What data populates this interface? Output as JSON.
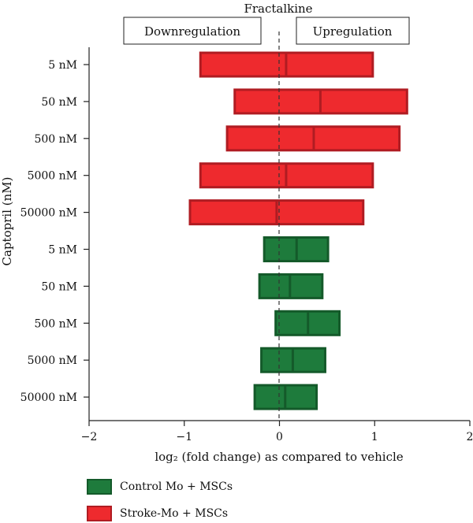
{
  "chart_data": {
    "type": "bar",
    "title": "Fractalkine",
    "xlabel": "log₂ (fold change) as compared to vehicle",
    "ylabel": "Captopril (nM)",
    "xlim": [
      -2,
      2
    ],
    "xticks": [
      "−2",
      "−1",
      "0",
      "1",
      "2"
    ],
    "xtick_values": [
      -2,
      -1,
      0,
      1,
      2
    ],
    "annotations": [
      "Downregulation",
      "Upregulation"
    ],
    "categories": [
      "5 nM",
      "50 nM",
      "500 nM",
      "5000 nM",
      "50000 nM",
      "5 nM",
      "50 nM",
      "500 nM",
      "5000 nM",
      "50000 nM"
    ],
    "series": [
      {
        "name": "Stroke-Mo + MSCs",
        "color": "#ee2a2e",
        "edge": "#b01c22",
        "min": [
          -0.83,
          -0.47,
          -0.55,
          -0.83,
          -0.94
        ],
        "median": [
          0.07,
          0.43,
          0.36,
          0.07,
          -0.03
        ],
        "max": [
          0.98,
          1.34,
          1.26,
          0.98,
          0.88
        ]
      },
      {
        "name": "Control Mo + MSCs",
        "color": "#1e7b3c",
        "edge": "#145a2a",
        "min": [
          -0.16,
          -0.21,
          -0.04,
          -0.19,
          -0.26
        ],
        "median": [
          0.18,
          0.11,
          0.3,
          0.14,
          0.06
        ],
        "max": [
          0.51,
          0.45,
          0.63,
          0.48,
          0.39
        ]
      }
    ],
    "legend": [
      {
        "label": "Control Mo + MSCs",
        "color": "#1e7b3c",
        "edge": "#145a2a"
      },
      {
        "label": "Stroke-Mo + MSCs",
        "color": "#ee2a2e",
        "edge": "#b01c22"
      }
    ],
    "grid": false,
    "legend_position": "bottom-left"
  }
}
